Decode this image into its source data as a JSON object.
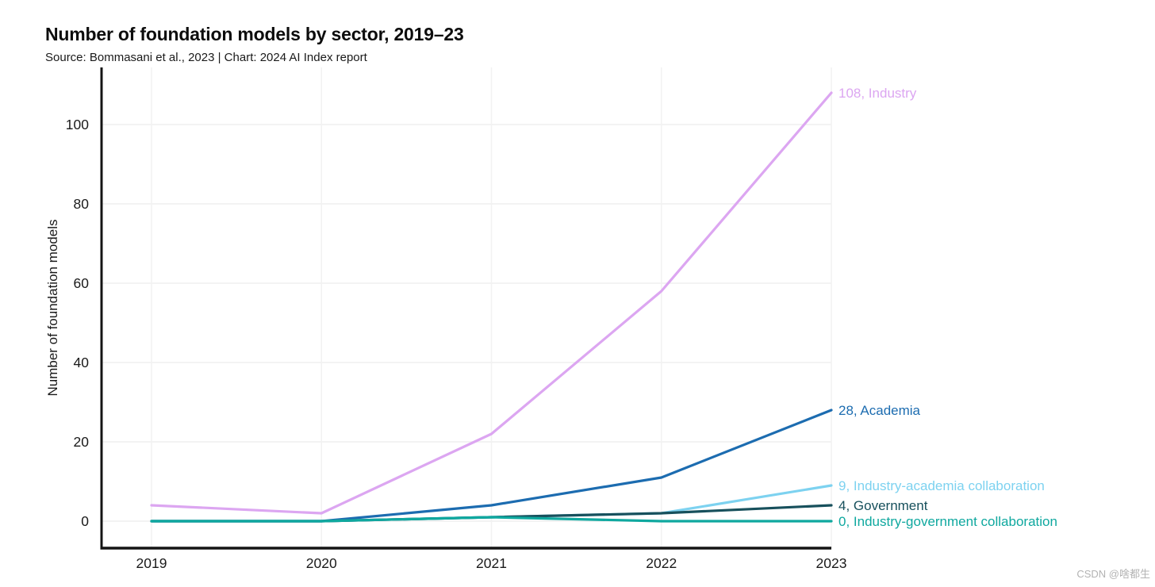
{
  "header": {
    "title": "Number of foundation models by sector, 2019–23",
    "subtitle": "Source: Bommasani et al., 2023 | Chart: 2024 AI Index report"
  },
  "watermark": "CSDN @啥都生",
  "colors": {
    "axis": "#141414",
    "grid_horizontal": "#efefef",
    "grid_vertical": "#f2f2f2",
    "tick_label": "#1a1a1a",
    "background": "#ffffff"
  },
  "chart_data": {
    "type": "line",
    "title": "Number of foundation models by sector, 2019–23",
    "x": [
      2019,
      2020,
      2021,
      2022,
      2023
    ],
    "xticklabels": [
      "2019",
      "2020",
      "2021",
      "2022",
      "2023"
    ],
    "ylabel": "Number of foundation models",
    "xlabel": "",
    "yticks": [
      0,
      20,
      40,
      60,
      80,
      100
    ],
    "ylim": [
      -6.8,
      114.4
    ],
    "grid": true,
    "legend_position": "end-of-line labels, right side",
    "series": [
      {
        "name": "Industry",
        "color": "#dca6f1",
        "values": [
          4,
          2,
          22,
          58,
          108
        ],
        "end_label": "108, Industry"
      },
      {
        "name": "Academia",
        "color": "#1c6cb0",
        "values": [
          0,
          0,
          4,
          11,
          28
        ],
        "end_label": "28, Academia"
      },
      {
        "name": "Industry-academia collaboration",
        "color": "#7dd2f0",
        "values": [
          0,
          0,
          1,
          2,
          9
        ],
        "end_label": "9, Industry-academia collaboration"
      },
      {
        "name": "Government",
        "color": "#17505c",
        "values": [
          0,
          0,
          1,
          2,
          4
        ],
        "end_label": "4, Government"
      },
      {
        "name": "Industry-government collaboration",
        "color": "#0fa89f",
        "values": [
          0,
          0,
          1,
          0,
          0
        ],
        "end_label": "0, Industry-government collaboration"
      }
    ]
  }
}
